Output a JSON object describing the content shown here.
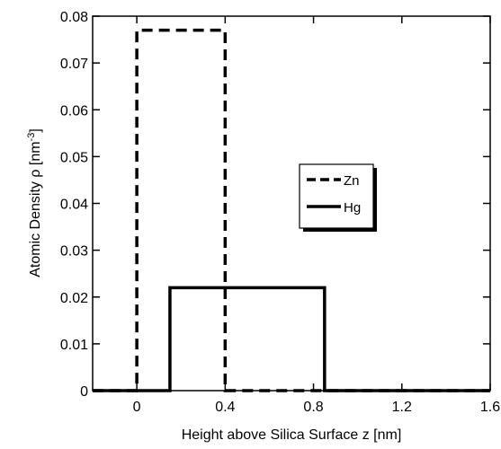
{
  "chart_data": {
    "type": "line",
    "xlabel": "Height above Silica Surface z [nm]",
    "ylabel": {
      "text": "Atomic Density ρ [nm",
      "sup": "-3",
      "end": "]"
    },
    "xlim": [
      -0.2,
      1.6
    ],
    "xticks": [
      0,
      0.4,
      0.8,
      1.2,
      1.6
    ],
    "ylim": [
      0,
      0.08
    ],
    "yticks": [
      0,
      0.01,
      0.02,
      0.03,
      0.04,
      0.05,
      0.06,
      0.07,
      0.08
    ],
    "series": [
      {
        "name": "Zn",
        "color": "#000000",
        "dash": true,
        "x": [
          -0.2,
          0,
          0,
          0.4,
          0.4,
          1.6
        ],
        "values": [
          0,
          0,
          0.077,
          0.077,
          0,
          0
        ]
      },
      {
        "name": "Hg",
        "color": "#000000",
        "dash": false,
        "x": [
          -0.2,
          0.15,
          0.15,
          0.85,
          0.85,
          1.6
        ],
        "values": [
          0,
          0,
          0.022,
          0.022,
          0,
          0
        ]
      }
    ]
  }
}
